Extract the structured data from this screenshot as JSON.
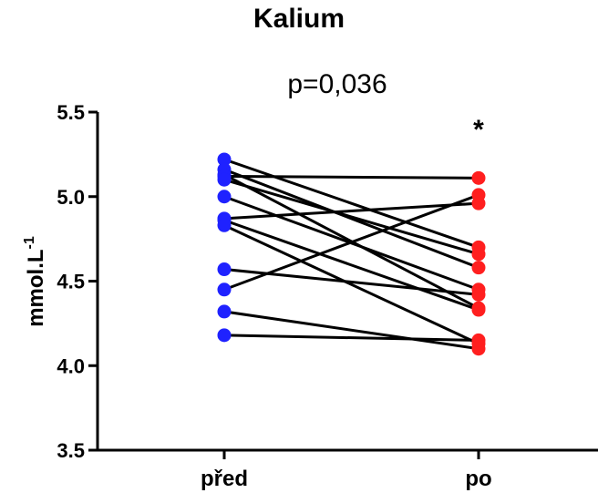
{
  "chart_data": {
    "type": "line",
    "title": "Kalium",
    "subtitle": "p=0,036",
    "ylabel": "mmol.L",
    "ylabel_superscript": "-1",
    "categories": [
      "před",
      "po"
    ],
    "ylim": [
      3.5,
      5.5
    ],
    "yticks": [
      "3.5",
      "4.0",
      "4.5",
      "5.0",
      "5.5"
    ],
    "significance_marker": "*",
    "colors": {
      "pred": "#1f22ff",
      "po": "#ff1f1f",
      "lines": "#000000"
    },
    "pairs": [
      [
        5.22,
        4.7
      ],
      [
        5.16,
        4.58
      ],
      [
        5.13,
        4.34
      ],
      [
        5.12,
        5.11
      ],
      [
        5.1,
        4.66
      ],
      [
        5.0,
        4.45
      ],
      [
        4.87,
        4.96
      ],
      [
        4.86,
        4.33
      ],
      [
        4.83,
        4.13
      ],
      [
        4.57,
        4.42
      ],
      [
        4.45,
        5.01
      ],
      [
        4.32,
        4.1
      ],
      [
        4.18,
        4.15
      ]
    ]
  }
}
